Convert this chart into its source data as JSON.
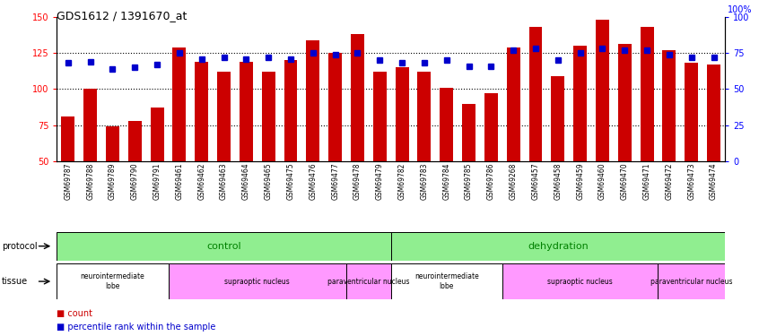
{
  "title": "GDS1612 / 1391670_at",
  "samples": [
    "GSM69787",
    "GSM69788",
    "GSM69789",
    "GSM69790",
    "GSM69791",
    "GSM69461",
    "GSM69462",
    "GSM69463",
    "GSM69464",
    "GSM69465",
    "GSM69475",
    "GSM69476",
    "GSM69477",
    "GSM69478",
    "GSM69479",
    "GSM69782",
    "GSM69783",
    "GSM69784",
    "GSM69785",
    "GSM69786",
    "GSM69268",
    "GSM69457",
    "GSM69458",
    "GSM69459",
    "GSM69460",
    "GSM69470",
    "GSM69471",
    "GSM69472",
    "GSM69473",
    "GSM69474"
  ],
  "bar_values": [
    81,
    100,
    74,
    78,
    87,
    129,
    119,
    112,
    119,
    112,
    120,
    134,
    125,
    138,
    112,
    115,
    112,
    101,
    90,
    97,
    129,
    143,
    109,
    130,
    148,
    131,
    143,
    127,
    118,
    117
  ],
  "percentile_values": [
    68,
    69,
    64,
    65,
    67,
    75,
    71,
    72,
    71,
    72,
    71,
    75,
    74,
    75,
    70,
    68,
    68,
    70,
    66,
    66,
    77,
    78,
    70,
    75,
    78,
    77,
    77,
    74,
    72,
    72
  ],
  "bar_color": "#CC0000",
  "percentile_color": "#0000CC",
  "ylim_left": [
    50,
    150
  ],
  "ylim_right": [
    0,
    100
  ],
  "yticks_left": [
    50,
    75,
    100,
    125,
    150
  ],
  "yticks_right": [
    0,
    25,
    50,
    75,
    100
  ],
  "hlines": [
    75,
    100,
    125
  ],
  "tissue_defs": [
    [
      0,
      5,
      "#FFFFFF",
      "neurointermediate\nlobe"
    ],
    [
      5,
      13,
      "#FF99FF",
      "supraoptic nucleus"
    ],
    [
      13,
      15,
      "#FF99FF",
      "paraventricular nucleus"
    ],
    [
      15,
      20,
      "#FFFFFF",
      "neurointermediate\nlobe"
    ],
    [
      20,
      27,
      "#FF99FF",
      "supraoptic nucleus"
    ],
    [
      27,
      30,
      "#FF99FF",
      "paraventricular nucleus"
    ]
  ],
  "protocol_color": "#90EE90",
  "bg_color": "#F0F0F0"
}
